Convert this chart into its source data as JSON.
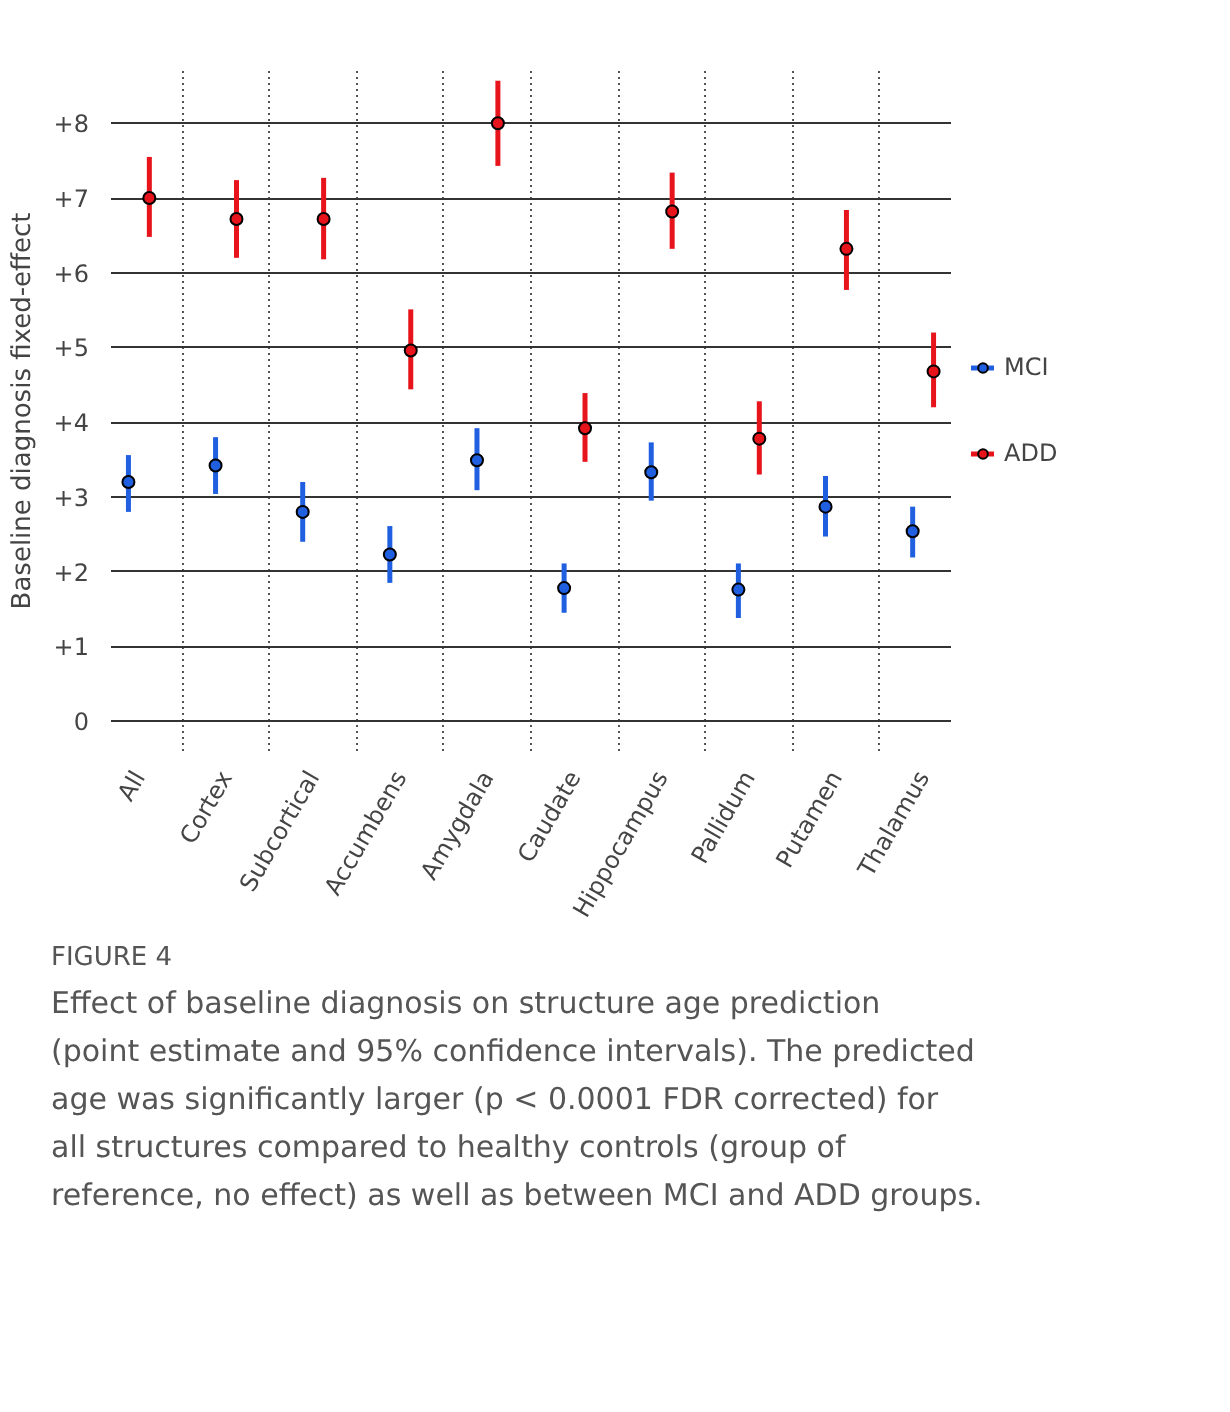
{
  "chart_data": {
    "type": "scatter",
    "ylabel": "Baseline diagnosis fixed-effect",
    "categories": [
      "All",
      "Cortex",
      "Subcortical",
      "Accumbens",
      "Amygdala",
      "Caudate",
      "Hippocampus",
      "Pallidum",
      "Putamen",
      "Thalamus"
    ],
    "series": [
      {
        "name": "MCI",
        "color": "#1f5fe0",
        "values": [
          3.2,
          3.42,
          2.8,
          2.23,
          3.49,
          1.78,
          3.33,
          1.76,
          2.87,
          2.54
        ],
        "errors": [
          [
            2.8,
            3.56
          ],
          [
            3.04,
            3.8
          ],
          [
            2.4,
            3.2
          ],
          [
            1.85,
            2.61
          ],
          [
            3.09,
            3.92
          ],
          [
            1.45,
            2.11
          ],
          [
            2.95,
            3.73
          ],
          [
            1.38,
            2.11
          ],
          [
            2.47,
            3.28
          ],
          [
            2.19,
            2.87
          ]
        ]
      },
      {
        "name": "ADD",
        "color": "#e8141c",
        "values": [
          7.0,
          6.72,
          6.72,
          4.96,
          8.0,
          3.92,
          6.82,
          3.78,
          6.32,
          4.68
        ],
        "errors": [
          [
            6.48,
            7.55
          ],
          [
            6.2,
            7.24
          ],
          [
            6.18,
            7.27
          ],
          [
            4.44,
            5.51
          ],
          [
            7.43,
            8.57
          ],
          [
            3.47,
            4.39
          ],
          [
            6.32,
            7.34
          ],
          [
            3.3,
            4.28
          ],
          [
            5.77,
            6.84
          ],
          [
            4.2,
            5.2
          ]
        ]
      }
    ],
    "ylim": [
      -0.4,
      8.7
    ],
    "yticks": [
      0,
      {
        "value": 1,
        "label": "+1"
      },
      {
        "value": 2,
        "label": "+2"
      },
      {
        "value": 3,
        "label": "+3"
      },
      {
        "value": 4,
        "label": "+4"
      },
      {
        "value": 5,
        "label": "+5"
      },
      {
        "value": 6,
        "label": "+6"
      },
      {
        "value": 7,
        "label": "+7"
      },
      {
        "value": 8,
        "label": "+8"
      }
    ],
    "grid": true,
    "legend": "right",
    "marker": "circle",
    "annotations": [
      "FIGURE 4",
      "Effect of baseline diagnosis on structure age prediction (point estimate and 95% confidence intervals). The predicted age was significantly larger (p < 0.0001 FDR corrected) for all structures compared to healthy controls (group of reference, no effect) as well as between MCI and ADD groups."
    ]
  }
}
